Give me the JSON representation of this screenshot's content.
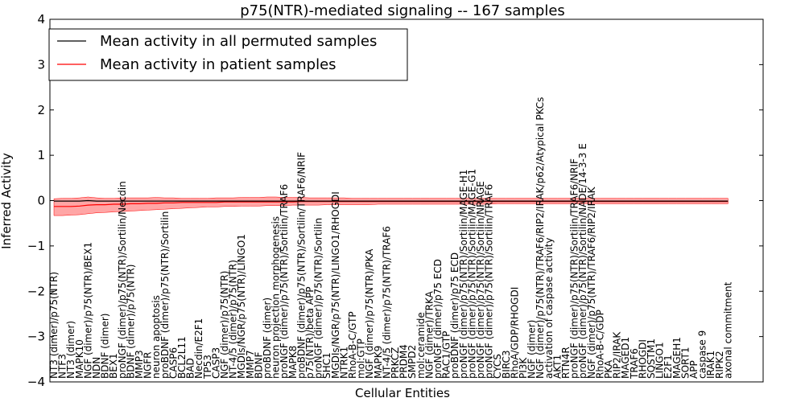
{
  "chart_data": {
    "type": "line",
    "title": "p75(NTR)-mediated signaling -- 167 samples",
    "xlabel": "Cellular Entities",
    "ylabel": "Inferred Activity",
    "ylim": [
      -4,
      4
    ],
    "yticks": [
      "4",
      "3",
      "2",
      "1",
      "0",
      "−1",
      "−2",
      "−3",
      "−4"
    ],
    "grid": false,
    "legend": "top-left",
    "categories": [
      "NT3 (dimer)/p75(NTR)",
      "NTF3",
      "NT3 (dimer)",
      "MAPK10",
      "NGF (dimer)/p75(NTR)/BEX1",
      "NDN",
      "BDNF (dimer)",
      "BEX1",
      "proNGF (dimer)/p75(NTR)/Sortilin/Necdin",
      "BDNF (dimer)/p75(NTR)",
      "MMP3",
      "NGFR",
      "neuron apoptosis",
      "proBDNF (dimer)/p75(NTR)/Sortilin",
      "CASP6",
      "BCL2L11",
      "BAD",
      "Necdin/E2F1",
      "TP53",
      "CASP3",
      "NGF (dimer)/p75(NTR)",
      "NT-4/5 (dimer)/p75(NTR)",
      "MGDIs/NGR/p75(NTR)/LINGO1",
      "MMP7",
      "BDNF",
      "proBDNF (dimer)",
      "neuron projection morphogenesis",
      "proNGF (dimer)/p75(NTR)/Sortilin/TRAF6",
      "MAPK8",
      "proBDNF (dimer)/p75(NTR)/Sortilin/TRAF6/NRIF",
      "p75(NTR)/beta APP",
      "proNGF (dimer)/p75(NTR)/Sortilin",
      "SHC1",
      "MGDIs/NGR/p75(NTR)/LINGO1/RHOGDI",
      "NTRK1",
      "RhoA-B-C/GTP",
      "mol:GTP",
      "NGF (dimer)/p75(NTR)/PKA",
      "MAPK9",
      "NT-4/5 (dimer)/p75(NTR)/TRAF6",
      "PRKCZ",
      "PRDM4",
      "SMPD2",
      "mol:ceramide",
      "NGF (dimer)/TRKA",
      "proNGF (dimer)/p75 ECD",
      "RAC1/GTP",
      "proBDNF (dimer)/p75 ECD",
      "proNGF (dimer)/p75(NTR)/Sortilin/MAGE-H1",
      "proNGF (dimer)/p75(NTR)/Sortilin/MAGE-G1",
      "proNGF (dimer)/p75(NTR)/Sortilin/NRAGE",
      "proNGF (dimer)/p75(NTR)/Sortilin/TRAF6",
      "CYCS",
      "BIRC3",
      "RhoA/GDP/RHOGDI",
      "PI3K",
      "NGF (dimer)",
      "NGF (dimer)/p75(NTR)/TRAF6/RIP2/IRAK/p62/Atypical PKCs",
      "activation of caspase activity",
      "AKT1",
      "RTN4R",
      "proNGF (dimer)/p75(NTR)/Sortilin/TRAF6/NRIF",
      "proNGF (dimer)/p75(NTR)/Sortilin/NADE/14-3-3 E",
      "NGF (dimer)/p75(NTR)/TRAF6/RIP2/IRAK",
      "RhoA-B-C/GDP",
      "PKA",
      "RIP2/IRAK",
      "MAGED1",
      "TRAF6",
      "RHOGDI",
      "SQSTM1",
      "LINGO1",
      "E2F1",
      "MAGEH1",
      "SORT1",
      "APP",
      "caspase 9",
      "IRAK1",
      "RIPK2",
      "axonal commitment"
    ],
    "series": [
      {
        "name": "Mean activity in all permuted samples",
        "color": "#000000",
        "values": [
          -0.01,
          -0.01,
          -0.01,
          -0.01,
          0.0,
          -0.01,
          -0.01,
          -0.01,
          -0.01,
          -0.01,
          -0.01,
          -0.01,
          -0.01,
          -0.01,
          -0.01,
          -0.01,
          -0.01,
          -0.01,
          -0.01,
          -0.01,
          -0.01,
          -0.01,
          -0.01,
          -0.01,
          -0.01,
          -0.01,
          -0.01,
          -0.01,
          -0.01,
          -0.01,
          -0.01,
          -0.01,
          -0.01,
          -0.01,
          -0.01,
          -0.01,
          -0.01,
          -0.01,
          -0.01,
          -0.01,
          -0.01,
          -0.01,
          -0.01,
          -0.01,
          -0.01,
          -0.01,
          -0.01,
          -0.01,
          -0.01,
          -0.01,
          -0.01,
          -0.01,
          -0.01,
          -0.01,
          -0.01,
          -0.01,
          -0.01,
          -0.01,
          -0.01,
          -0.01,
          -0.01,
          -0.01,
          -0.01,
          -0.01,
          -0.01,
          -0.01,
          -0.01,
          -0.01,
          -0.01,
          -0.01,
          -0.01,
          -0.01,
          -0.01,
          -0.01,
          -0.01,
          -0.01,
          -0.01,
          -0.01,
          -0.01,
          -0.01
        ]
      },
      {
        "name": "Mean activity in patient samples",
        "color": "#ff0000",
        "band_color": "#ff8080",
        "values": [
          -0.13,
          -0.13,
          -0.13,
          -0.12,
          -0.1,
          -0.09,
          -0.09,
          -0.08,
          -0.08,
          -0.07,
          -0.07,
          -0.06,
          -0.06,
          -0.05,
          -0.05,
          -0.04,
          -0.04,
          -0.04,
          -0.04,
          -0.04,
          -0.03,
          -0.03,
          -0.03,
          -0.03,
          -0.03,
          -0.03,
          -0.03,
          -0.03,
          -0.03,
          -0.02,
          -0.02,
          -0.02,
          -0.02,
          -0.02,
          -0.02,
          -0.02,
          -0.02,
          -0.02,
          -0.02,
          -0.02,
          -0.02,
          -0.02,
          -0.02,
          -0.02,
          -0.02,
          -0.02,
          -0.02,
          -0.02,
          -0.02,
          -0.02,
          -0.02,
          -0.02,
          -0.02,
          -0.02,
          -0.02,
          -0.02,
          -0.02,
          -0.02,
          -0.02,
          -0.02,
          -0.02,
          -0.02,
          -0.02,
          -0.02,
          -0.02,
          -0.02,
          -0.02,
          -0.02,
          -0.02,
          -0.02,
          -0.02,
          -0.02,
          -0.02,
          -0.02,
          -0.02,
          -0.02,
          -0.02,
          -0.02,
          -0.02,
          -0.02
        ],
        "band_low": [
          -0.33,
          -0.33,
          -0.32,
          -0.31,
          -0.29,
          -0.27,
          -0.26,
          -0.25,
          -0.24,
          -0.23,
          -0.22,
          -0.21,
          -0.2,
          -0.19,
          -0.18,
          -0.17,
          -0.16,
          -0.15,
          -0.14,
          -0.14,
          -0.13,
          -0.13,
          -0.12,
          -0.12,
          -0.12,
          -0.11,
          -0.11,
          -0.11,
          -0.1,
          -0.1,
          -0.1,
          -0.1,
          -0.09,
          -0.09,
          -0.09,
          -0.09,
          -0.09,
          -0.09,
          -0.08,
          -0.08,
          -0.08,
          -0.08,
          -0.08,
          -0.08,
          -0.08,
          -0.08,
          -0.08,
          -0.08,
          -0.08,
          -0.08,
          -0.08,
          -0.08,
          -0.07,
          -0.07,
          -0.07,
          -0.07,
          -0.07,
          -0.07,
          -0.07,
          -0.07,
          -0.07,
          -0.07,
          -0.07,
          -0.07,
          -0.07,
          -0.07,
          -0.07,
          -0.07,
          -0.07,
          -0.07,
          -0.07,
          -0.07,
          -0.07,
          -0.07,
          -0.07,
          -0.07,
          -0.07,
          -0.07,
          -0.07,
          -0.07
        ],
        "band_high": [
          0.04,
          0.05,
          0.05,
          0.06,
          0.08,
          0.06,
          0.05,
          0.05,
          0.06,
          0.06,
          0.06,
          0.06,
          0.07,
          0.06,
          0.06,
          0.05,
          0.05,
          0.05,
          0.05,
          0.06,
          0.06,
          0.06,
          0.07,
          0.07,
          0.07,
          0.08,
          0.08,
          0.07,
          0.07,
          0.07,
          0.06,
          0.06,
          0.06,
          0.06,
          0.06,
          0.05,
          0.05,
          0.05,
          0.05,
          0.05,
          0.05,
          0.05,
          0.05,
          0.05,
          0.05,
          0.05,
          0.05,
          0.05,
          0.05,
          0.05,
          0.05,
          0.05,
          0.05,
          0.05,
          0.05,
          0.05,
          0.05,
          0.05,
          0.05,
          0.05,
          0.05,
          0.05,
          0.05,
          0.05,
          0.05,
          0.05,
          0.05,
          0.05,
          0.05,
          0.05,
          0.05,
          0.05,
          0.05,
          0.05,
          0.05,
          0.05,
          0.05,
          0.05,
          0.05,
          0.05
        ]
      }
    ]
  }
}
